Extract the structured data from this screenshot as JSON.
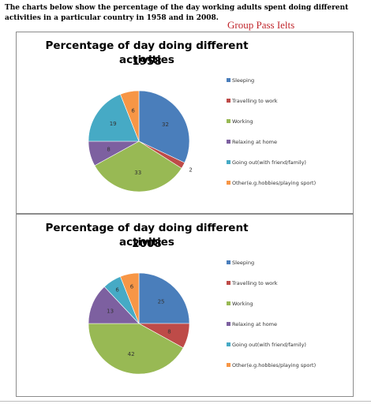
{
  "page": {
    "intro": "The charts below show the percentage of the day working adults spent doing different activities in a particular country in 1958 and in 2008.",
    "watermark": "Group Pass Ielts"
  },
  "chart_data": [
    {
      "type": "pie",
      "title": "Percentage of day doing different activities",
      "subtitle": "1958",
      "categories": [
        "Sleeping",
        "Travelling to work",
        "Working",
        "Relaxing at home",
        "Going out(with friend/family)",
        "Other(e.g.hobbies/playing sport)"
      ],
      "values": [
        32,
        2,
        33,
        8,
        19,
        6
      ],
      "colors": [
        "#4a7ebb",
        "#be4b48",
        "#98b954",
        "#7d60a0",
        "#46aac5",
        "#f79646"
      ],
      "legend": "right"
    },
    {
      "type": "pie",
      "title": "Percentage of day doing different activities",
      "subtitle": "2008",
      "categories": [
        "Sleeping",
        "Travelling to work",
        "Working",
        "Relaxing at home",
        "Going out(with friend/family)",
        "Other(e.g.hobbies/playing sport)"
      ],
      "values": [
        25,
        8,
        42,
        13,
        6,
        6
      ],
      "colors": [
        "#4a7ebb",
        "#be4b48",
        "#98b954",
        "#7d60a0",
        "#46aac5",
        "#f79646"
      ],
      "legend": "right"
    }
  ]
}
